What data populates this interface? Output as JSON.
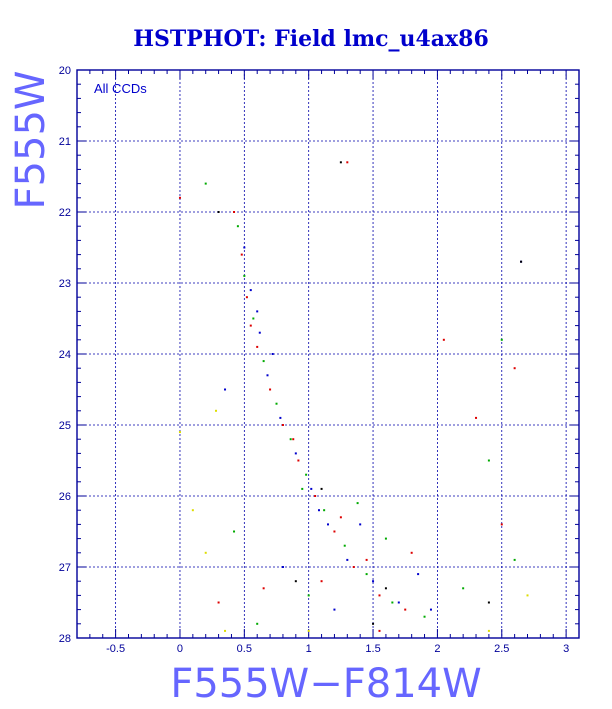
{
  "chart_data": {
    "type": "scatter",
    "title": "HSTPHOT: Field lmc_u4ax86",
    "xlabel": "F555W−F814W",
    "ylabel": "F555W",
    "xlim": [
      -0.8,
      3.1
    ],
    "ylim": [
      28,
      20
    ],
    "y_inverted": true,
    "x_major_ticks": [
      -0.5,
      0,
      0.5,
      1,
      1.5,
      2,
      2.5,
      3
    ],
    "x_tick_labels": [
      "-0.5",
      "0",
      "0.5",
      "1",
      "1.5",
      "2",
      "2.5",
      "3"
    ],
    "y_major_ticks": [
      20,
      21,
      22,
      23,
      24,
      25,
      26,
      27,
      28
    ],
    "y_tick_labels": [
      "20",
      "21",
      "22",
      "23",
      "24",
      "25",
      "26",
      "27",
      "28"
    ],
    "grid": true,
    "annotation": "All CCDs",
    "series": [
      {
        "color": "#dd0000",
        "points": [
          [
            0.42,
            22.0
          ],
          [
            0.48,
            22.6
          ],
          [
            0.52,
            23.2
          ],
          [
            0.6,
            23.9
          ],
          [
            0.7,
            24.5
          ],
          [
            0.8,
            25.0
          ],
          [
            0.92,
            25.5
          ],
          [
            1.05,
            26.0
          ],
          [
            1.2,
            26.5
          ],
          [
            1.35,
            27.0
          ],
          [
            1.55,
            27.4
          ],
          [
            1.75,
            27.6
          ],
          [
            1.1,
            27.2
          ],
          [
            2.3,
            24.9
          ],
          [
            2.5,
            26.4
          ],
          [
            1.8,
            26.8
          ],
          [
            0.3,
            27.5
          ],
          [
            0.0,
            21.8
          ],
          [
            1.3,
            21.3
          ],
          [
            1.55,
            27.9
          ],
          [
            0.65,
            27.3
          ],
          [
            2.05,
            23.8
          ],
          [
            1.25,
            26.3
          ],
          [
            0.88,
            25.2
          ],
          [
            1.45,
            26.9
          ],
          [
            2.6,
            24.2
          ],
          [
            0.55,
            23.6
          ]
        ]
      },
      {
        "color": "#00aa00",
        "points": [
          [
            0.45,
            22.2
          ],
          [
            0.5,
            22.9
          ],
          [
            0.57,
            23.5
          ],
          [
            0.65,
            24.1
          ],
          [
            0.75,
            24.7
          ],
          [
            0.86,
            25.2
          ],
          [
            0.98,
            25.7
          ],
          [
            1.12,
            26.2
          ],
          [
            1.28,
            26.7
          ],
          [
            1.45,
            27.1
          ],
          [
            1.65,
            27.5
          ],
          [
            1.9,
            27.7
          ],
          [
            2.5,
            23.8
          ],
          [
            2.6,
            26.9
          ],
          [
            0.2,
            21.6
          ],
          [
            1.0,
            27.4
          ],
          [
            0.6,
            27.8
          ],
          [
            2.2,
            27.3
          ],
          [
            1.6,
            26.6
          ],
          [
            0.95,
            25.9
          ],
          [
            1.38,
            26.1
          ],
          [
            2.4,
            25.5
          ],
          [
            0.42,
            26.5
          ]
        ]
      },
      {
        "color": "#0000cc",
        "points": [
          [
            0.5,
            22.5
          ],
          [
            0.55,
            23.1
          ],
          [
            0.62,
            23.7
          ],
          [
            0.68,
            24.3
          ],
          [
            0.78,
            24.9
          ],
          [
            0.9,
            25.4
          ],
          [
            1.02,
            25.9
          ],
          [
            1.15,
            26.4
          ],
          [
            1.3,
            26.9
          ],
          [
            1.5,
            27.2
          ],
          [
            1.7,
            27.5
          ],
          [
            1.95,
            27.6
          ],
          [
            1.2,
            27.6
          ],
          [
            0.35,
            24.5
          ],
          [
            2.65,
            22.7
          ],
          [
            0.8,
            27.0
          ],
          [
            1.85,
            27.1
          ],
          [
            1.4,
            26.4
          ],
          [
            0.72,
            24.0
          ],
          [
            1.08,
            26.2
          ],
          [
            0.6,
            23.4
          ]
        ]
      },
      {
        "color": "#000000",
        "points": [
          [
            1.25,
            21.3
          ],
          [
            2.65,
            22.7
          ],
          [
            0.9,
            27.2
          ],
          [
            1.5,
            27.8
          ],
          [
            2.4,
            27.5
          ],
          [
            0.3,
            22.0
          ],
          [
            1.1,
            25.9
          ],
          [
            1.6,
            27.3
          ]
        ]
      },
      {
        "color": "#dddd00",
        "points": [
          [
            0.1,
            26.2
          ],
          [
            0.35,
            27.9
          ],
          [
            2.4,
            27.9
          ],
          [
            0.0,
            25.1
          ],
          [
            0.2,
            26.8
          ],
          [
            1.0,
            27.9
          ],
          [
            2.7,
            27.4
          ],
          [
            0.28,
            24.8
          ]
        ]
      }
    ]
  }
}
